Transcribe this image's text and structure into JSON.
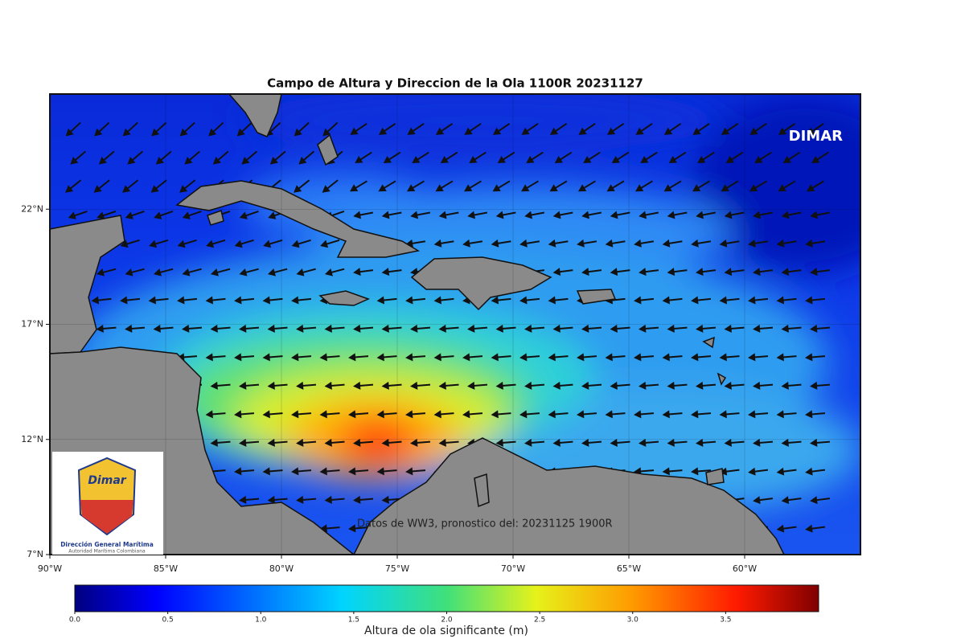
{
  "title": "Campo de Altura y Direccion de la Ola 1100R 20231127",
  "map": {
    "lonlim": [
      -90,
      -55
    ],
    "latlim": [
      7,
      27
    ],
    "lat_ticks": [
      {
        "value": 22,
        "label": "22°N"
      },
      {
        "value": 17,
        "label": "17°N"
      },
      {
        "value": 12,
        "label": "12°N"
      },
      {
        "value": 7,
        "label": "7°N"
      }
    ],
    "lon_ticks": [
      {
        "value": -90,
        "label": "90°W"
      },
      {
        "value": -85,
        "label": "85°W"
      },
      {
        "value": -80,
        "label": "80°W"
      },
      {
        "value": -75,
        "label": "75°W"
      },
      {
        "value": -70,
        "label": "70°W"
      },
      {
        "value": -65,
        "label": "65°W"
      },
      {
        "value": -60,
        "label": "60°W"
      }
    ],
    "watermark": "DIMAR",
    "source_note": "Datos de WW3, pronostico del: 20231125 1900R"
  },
  "logo": {
    "brand": "Dimar",
    "name": "Dirección General Marítima",
    "subtitle": "Autoridad Marítima Colombiana"
  },
  "colorbar": {
    "lim": [
      0,
      4
    ],
    "ticks": [
      {
        "value": 0,
        "label": "0.0"
      },
      0.5,
      {
        "value": 1,
        "label": "1.0"
      },
      1.5,
      {
        "value": 2,
        "label": "2.0"
      },
      2.5,
      {
        "value": 3,
        "label": "3.0"
      },
      3.5
    ],
    "label": "Altura de ola significante (m)"
  }
}
